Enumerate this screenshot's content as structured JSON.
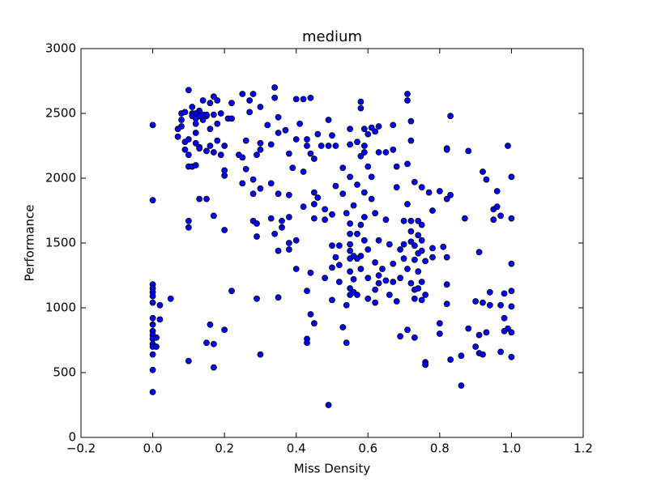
{
  "chart_data": {
    "type": "scatter",
    "title": "medium",
    "xlabel": "Miss Density",
    "ylabel": "Performance",
    "color": "#0000ff",
    "xlim": [
      -0.2,
      1.2
    ],
    "ylim": [
      0,
      3000
    ],
    "xticks": [
      {
        "value": -0.2,
        "label": "−0.2"
      },
      {
        "value": 0,
        "label": "0.0"
      },
      0.2,
      0.4,
      0.6,
      0.8,
      {
        "value": 1,
        "label": "1.0"
      },
      1.2
    ],
    "yticks": [
      0,
      500,
      1000,
      1500,
      2000,
      2500,
      3000
    ],
    "x": [
      0,
      0,
      0,
      0,
      0,
      0,
      0,
      0,
      0,
      0,
      0,
      0,
      0,
      0,
      0,
      0,
      0,
      0.01,
      0.01,
      0.02,
      0.02,
      0.05,
      0.07,
      0.07,
      0.08,
      0.08,
      0.08,
      0.09,
      0.09,
      0.09,
      0.1,
      0.1,
      0.1,
      0.1,
      0.1,
      0.1,
      0.11,
      0.11,
      0.11,
      0.11,
      0.12,
      0.12,
      0.12,
      0.12,
      0.12,
      0.13,
      0.13,
      0.13,
      0.13,
      0.14,
      0.14,
      0.14,
      0.15,
      0.15,
      0.15,
      0.16,
      0.16,
      0.16,
      0.17,
      0.17,
      0.17,
      0.17,
      0.18,
      0.18,
      0.18,
      0.19,
      0.19,
      0.2,
      0.2,
      0.2,
      0.2,
      0.21,
      0.22,
      0.22,
      0.1,
      0.15,
      0.16,
      0.17,
      0.17,
      0.2,
      0.22,
      0.12,
      0.15,
      0.13,
      0.24,
      0.25,
      0.25,
      0.25,
      0.26,
      0.26,
      0.27,
      0.27,
      0.28,
      0.28,
      0.28,
      0.28,
      0.29,
      0.29,
      0.29,
      0.29,
      0.3,
      0.3,
      0.3,
      0.3,
      0.3,
      0.32,
      0.33,
      0.33,
      0.33,
      0.34,
      0.34,
      0.34,
      0.35,
      0.35,
      0.35,
      0.35,
      0.35,
      0.36,
      0.36,
      0.37,
      0.38,
      0.38,
      0.38,
      0.38,
      0.38,
      0.39,
      0.4,
      0.4,
      0.4,
      0.4,
      0.41,
      0.42,
      0.42,
      0.42,
      0.43,
      0.43,
      0.43,
      0.43,
      0.43,
      0.44,
      0.44,
      0.44,
      0.44,
      0.45,
      0.45,
      0.45,
      0.45,
      0.45,
      0.46,
      0.46,
      0.47,
      0.48,
      0.48,
      0.48,
      0.49,
      0.49,
      0.5,
      0.5,
      0.5,
      0.5,
      0.5,
      0.49,
      0.51,
      0.51,
      0.51,
      0.52,
      0.52,
      0.52,
      0.53,
      0.53,
      0.53,
      0.54,
      0.54,
      0.54,
      0.55,
      0.55,
      0.55,
      0.55,
      0.55,
      0.55,
      0.55,
      0.55,
      0.55,
      0.55,
      0.55,
      0.56,
      0.56,
      0.56,
      0.56,
      0.57,
      0.57,
      0.57,
      0.57,
      0.57,
      0.58,
      0.58,
      0.58,
      0.58,
      0.58,
      0.58,
      0.59,
      0.59,
      0.59,
      0.59,
      0.59,
      0.59,
      0.6,
      0.6,
      0.6,
      0.6,
      0.6,
      0.61,
      0.61,
      0.61,
      0.62,
      0.62,
      0.62,
      0.62,
      0.62,
      0.63,
      0.63,
      0.63,
      0.63,
      0.63,
      0.64,
      0.65,
      0.65,
      0.65,
      0.66,
      0.66,
      0.67,
      0.67,
      0.67,
      0.67,
      0.68,
      0.68,
      0.68,
      0.69,
      0.69,
      0.69,
      0.7,
      0.7,
      0.7,
      0.71,
      0.71,
      0.71,
      0.71,
      0.71,
      0.71,
      0.72,
      0.72,
      0.72,
      0.72,
      0.72,
      0.72,
      0.73,
      0.73,
      0.73,
      0.73,
      0.73,
      0.73,
      0.74,
      0.74,
      0.74,
      0.74,
      0.74,
      0.75,
      0.75,
      0.75,
      0.75,
      0.75,
      0.75,
      0.76,
      0.76,
      0.76,
      0.76,
      0.77,
      0.78,
      0.78,
      0.78,
      0.8,
      0.8,
      0.8,
      0.81,
      0.82,
      0.82,
      0.82,
      0.82,
      0.82,
      0.82,
      0.83,
      0.83,
      0.83,
      0.86,
      0.86,
      0.87,
      0.88,
      0.88,
      0.9,
      0.9,
      0.91,
      0.91,
      0.91,
      0.92,
      0.92,
      0.92,
      0.93,
      0.93,
      0.94,
      0.94,
      0.95,
      0.95,
      0.96,
      0.97,
      0.97,
      0.97,
      0.98,
      0.99,
      0.99,
      0.98,
      1,
      1,
      1,
      1,
      1,
      1,
      1,
      0.98,
      0.96
    ],
    "values": [
      2410,
      1830,
      1180,
      1150,
      1120,
      1090,
      1040,
      920,
      870,
      820,
      790,
      760,
      720,
      700,
      640,
      520,
      350,
      770,
      700,
      1020,
      910,
      1070,
      2320,
      2380,
      2450,
      2500,
      2400,
      2510,
      2280,
      2220,
      2680,
      2300,
      2180,
      2090,
      1670,
      1620,
      2500,
      2480,
      2550,
      2090,
      2460,
      2420,
      2350,
      2270,
      2100,
      2520,
      2240,
      2230,
      1840,
      2490,
      2450,
      2600,
      1840,
      2480,
      2210,
      2380,
      2580,
      2250,
      2630,
      2490,
      2200,
      1710,
      2420,
      2600,
      2290,
      2500,
      2180,
      2060,
      2020,
      1600,
      2250,
      2460,
      2580,
      2460,
      590,
      730,
      870,
      720,
      540,
      830,
      1130,
      2500,
      2490,
      2480,
      2180,
      2160,
      2650,
      1960,
      2290,
      2070,
      2600,
      2510,
      2650,
      1990,
      1880,
      1670,
      2180,
      1650,
      1550,
      1070,
      2550,
      2270,
      2220,
      1920,
      640,
      2410,
      2260,
      1690,
      1960,
      2620,
      2700,
      1570,
      2470,
      2350,
      1880,
      1440,
      1080,
      1670,
      1620,
      2370,
      2190,
      1870,
      1700,
      1500,
      1450,
      2080,
      2610,
      2300,
      1520,
      1300,
      2420,
      2610,
      2050,
      1780,
      2250,
      2300,
      1130,
      760,
      730,
      2620,
      2190,
      1270,
      950,
      2150,
      1890,
      1800,
      1690,
      880,
      2340,
      1850,
      2250,
      1760,
      1680,
      1230,
      2450,
      2250,
      2330,
      1720,
      1480,
      1310,
      1060,
      250,
      2250,
      1940,
      1390,
      1480,
      1330,
      1200,
      2080,
      1880,
      850,
      1730,
      1020,
      730,
      2380,
      2260,
      2010,
      1650,
      1570,
      1490,
      1440,
      1380,
      1280,
      1150,
      1100,
      1790,
      1220,
      1120,
      1400,
      2280,
      1950,
      1570,
      1380,
      1100,
      2590,
      2540,
      2170,
      1640,
      1400,
      1300,
      2380,
      2250,
      2200,
      1890,
      1700,
      1520,
      2340,
      2090,
      1450,
      1230,
      1070,
      2390,
      2010,
      1840,
      2360,
      1730,
      1350,
      1140,
      1040,
      2400,
      2200,
      1520,
      1250,
      1190,
      1300,
      2200,
      1680,
      1210,
      1100,
      1490,
      2220,
      1340,
      1200,
      2410,
      1930,
      2090,
      1050,
      1230,
      1450,
      780,
      1670,
      1490,
      1380,
      2650,
      2600,
      2110,
      1800,
      1300,
      830,
      2290,
      2440,
      1670,
      1590,
      1510,
      1190,
      1970,
      1480,
      1370,
      1140,
      1070,
      770,
      1670,
      1560,
      1420,
      1280,
      1150,
      1930,
      1640,
      1520,
      1440,
      1200,
      1060,
      1360,
      1100,
      580,
      560,
      1890,
      1750,
      1460,
      1390,
      1900,
      880,
      800,
      1470,
      2230,
      2220,
      1840,
      1390,
      1180,
      1030,
      2480,
      1870,
      600,
      400,
      630,
      1690,
      2210,
      840,
      1050,
      700,
      1430,
      790,
      650,
      2050,
      1040,
      640,
      810,
      1990,
      1120,
      1020,
      1760,
      1680,
      1900,
      1710,
      1020,
      660,
      920,
      2250,
      840,
      820,
      2010,
      1690,
      1340,
      1130,
      1010,
      810,
      620,
      1110,
      1780
    ]
  }
}
